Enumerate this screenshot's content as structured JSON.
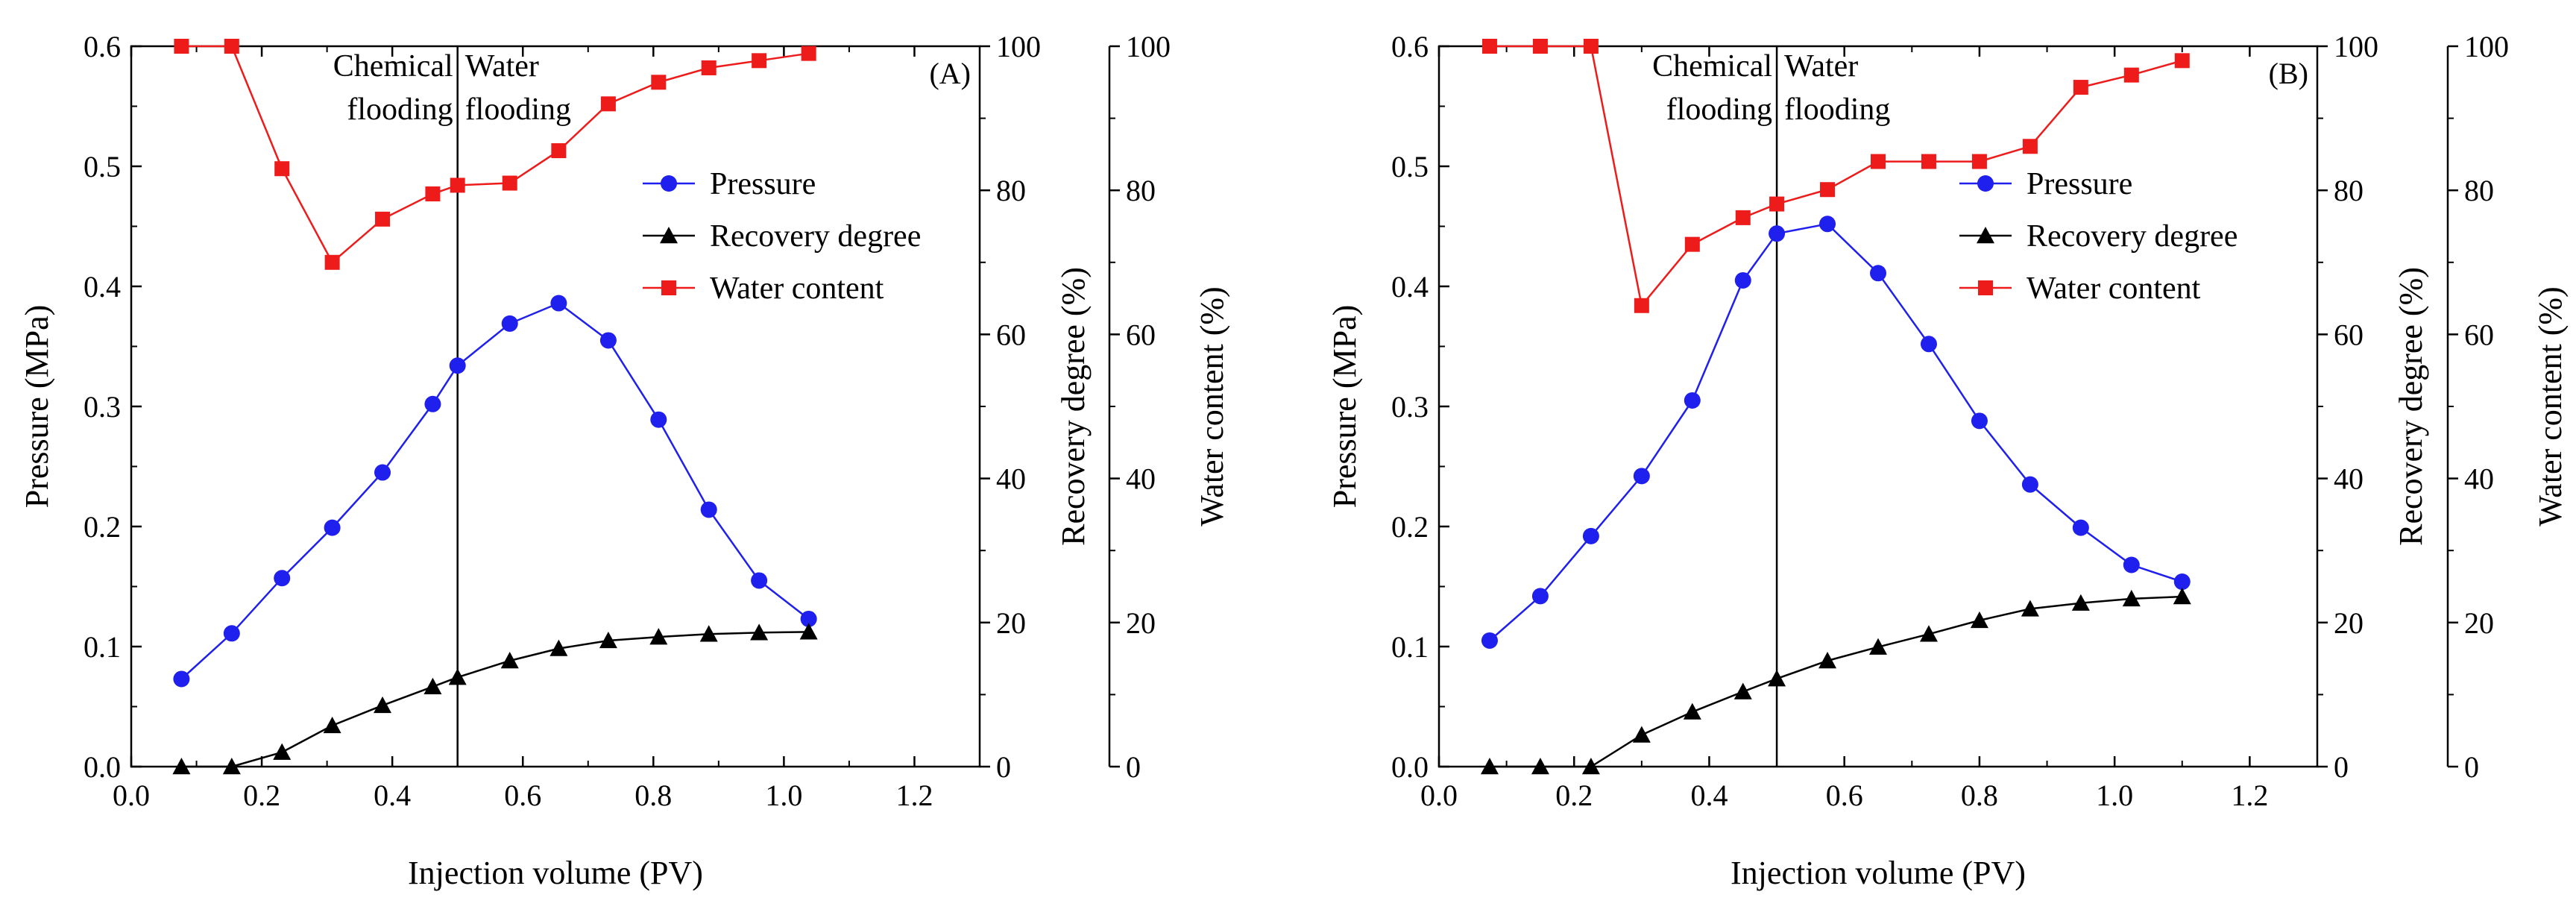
{
  "colors": {
    "pressure": "#1f1fee",
    "recovery": "#000000",
    "water": "#ee1b1b"
  },
  "chart_data": [
    {
      "type": "line",
      "panel_label": "(A)",
      "xlabel": "Injection volume (PV)",
      "ylabel_left": "Pressure (MPa)",
      "ylabel_right1": "Recovery degree (%)",
      "ylabel_right2": "Water content (%)",
      "xlim": [
        0.0,
        1.3
      ],
      "x_ticks": [
        "0.0",
        "0.2",
        "0.4",
        "0.6",
        "0.8",
        "1.0",
        "1.2"
      ],
      "ylim_left": [
        0.0,
        0.6
      ],
      "y_ticks_left": [
        "0.0",
        "0.1",
        "0.2",
        "0.3",
        "0.4",
        "0.5",
        "0.6"
      ],
      "ylim_right": [
        0,
        100
      ],
      "y_ticks_right1": [
        "0",
        "20",
        "40",
        "60",
        "80",
        "100"
      ],
      "y_ticks_right2": [
        "0",
        "20",
        "40",
        "60",
        "80",
        "100"
      ],
      "divider_x": 0.5,
      "annotation_left": [
        "Chemical",
        "flooding"
      ],
      "annotation_right": [
        "Water",
        "flooding"
      ],
      "series": [
        {
          "name": "Pressure",
          "axis": "left",
          "marker": "circle",
          "x": [
            0.077,
            0.154,
            0.231,
            0.308,
            0.385,
            0.462,
            0.5,
            0.58,
            0.655,
            0.731,
            0.808,
            0.885,
            0.962,
            1.038
          ],
          "values": [
            0.073,
            0.111,
            0.157,
            0.199,
            0.245,
            0.302,
            0.334,
            0.369,
            0.386,
            0.355,
            0.289,
            0.214,
            0.155,
            0.123
          ]
        },
        {
          "name": "Recovery degree",
          "axis": "right1",
          "marker": "triangle",
          "x": [
            0.077,
            0.154,
            0.231,
            0.308,
            0.385,
            0.462,
            0.5,
            0.58,
            0.655,
            0.731,
            0.808,
            0.885,
            0.962,
            1.038
          ],
          "values": [
            0,
            0,
            2,
            5.7,
            8.5,
            11.1,
            12.4,
            14.7,
            16.4,
            17.5,
            18,
            18.4,
            18.6,
            18.7
          ]
        },
        {
          "name": "Water content",
          "axis": "right2",
          "marker": "square",
          "x": [
            0.077,
            0.154,
            0.231,
            0.308,
            0.385,
            0.462,
            0.5,
            0.58,
            0.655,
            0.731,
            0.808,
            0.885,
            0.962,
            1.038
          ],
          "values": [
            100,
            100,
            83,
            70,
            76,
            79.5,
            80.7,
            81,
            85.5,
            92,
            95,
            97,
            98,
            99
          ]
        }
      ],
      "legend_position": "center-right"
    },
    {
      "type": "line",
      "panel_label": "(B)",
      "xlabel": "Injection volume (PV)",
      "ylabel_left": "Pressure (MPa)",
      "ylabel_right1": "Recovery degree (%)",
      "ylabel_right2": "Water content (%)",
      "xlim": [
        0.0,
        1.3
      ],
      "x_ticks": [
        "0.0",
        "0.2",
        "0.4",
        "0.6",
        "0.8",
        "1.0",
        "1.2"
      ],
      "ylim_left": [
        0.0,
        0.6
      ],
      "y_ticks_left": [
        "0.0",
        "0.1",
        "0.2",
        "0.3",
        "0.4",
        "0.5",
        "0.6"
      ],
      "ylim_right": [
        0,
        100
      ],
      "y_ticks_right1": [
        "0",
        "20",
        "40",
        "60",
        "80",
        "100"
      ],
      "y_ticks_right2": [
        "0",
        "20",
        "40",
        "60",
        "80",
        "100"
      ],
      "divider_x": 0.5,
      "annotation_left": [
        "Chemical",
        "flooding"
      ],
      "annotation_right": [
        "Water",
        "flooding"
      ],
      "series": [
        {
          "name": "Pressure",
          "axis": "left",
          "marker": "circle",
          "x": [
            0.075,
            0.15,
            0.225,
            0.3,
            0.375,
            0.45,
            0.5,
            0.575,
            0.65,
            0.725,
            0.8,
            0.875,
            0.95,
            1.025,
            1.1
          ],
          "values": [
            0.105,
            0.142,
            0.192,
            0.242,
            0.305,
            0.405,
            0.444,
            0.452,
            0.411,
            0.352,
            0.288,
            0.235,
            0.199,
            0.168,
            0.154
          ]
        },
        {
          "name": "Recovery degree",
          "axis": "right1",
          "marker": "triangle",
          "x": [
            0.075,
            0.15,
            0.225,
            0.3,
            0.375,
            0.45,
            0.5,
            0.575,
            0.65,
            0.725,
            0.8,
            0.875,
            0.95,
            1.025,
            1.1
          ],
          "values": [
            0,
            0,
            0,
            4.4,
            7.6,
            10.4,
            12.2,
            14.7,
            16.6,
            18.4,
            20.3,
            21.9,
            22.7,
            23.3,
            23.6
          ]
        },
        {
          "name": "Water content",
          "axis": "right2",
          "marker": "square",
          "x": [
            0.075,
            0.15,
            0.225,
            0.3,
            0.375,
            0.45,
            0.5,
            0.575,
            0.65,
            0.725,
            0.8,
            0.875,
            0.95,
            1.025,
            1.1
          ],
          "values": [
            100,
            100,
            100,
            64,
            72.5,
            76.2,
            78.1,
            80.1,
            84,
            84,
            84,
            86.1,
            94.3,
            96,
            98
          ]
        }
      ],
      "legend_position": "center-right"
    }
  ]
}
